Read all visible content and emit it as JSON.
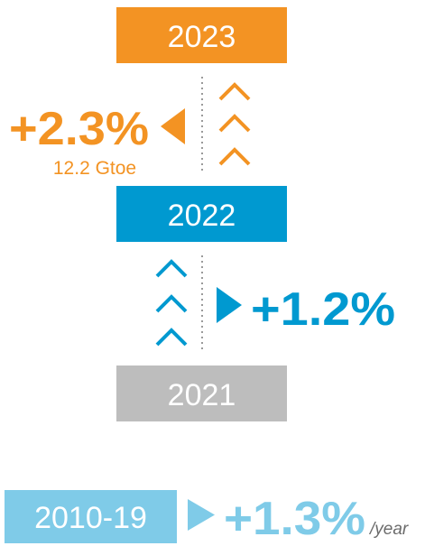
{
  "periods": [
    {
      "label": "2023"
    },
    {
      "label": "2022"
    },
    {
      "label": "2021"
    }
  ],
  "changes": [
    {
      "value": "+2.3%",
      "detail": "12.2 Gtoe"
    },
    {
      "value": "+1.2%"
    }
  ],
  "average": {
    "period": "2010-19",
    "value": "+1.3%",
    "unit": "/year"
  }
}
